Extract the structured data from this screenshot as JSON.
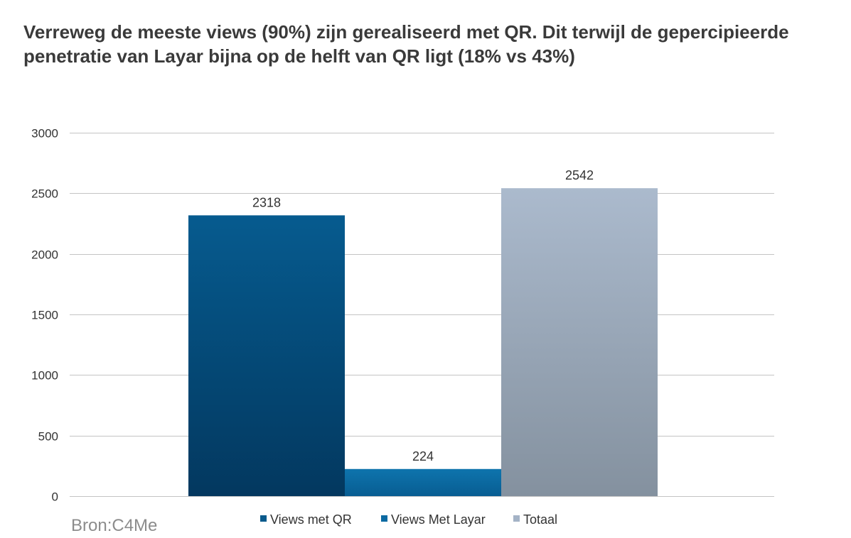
{
  "slide": {
    "title": "Verreweg de meeste views (90%) zijn gerealiseerd met QR. Dit terwijl de gepercipieerde penetratie van Layar bijna op de helft van QR ligt (18% vs 43%)",
    "source": "Bron:C4Me"
  },
  "chart_data": {
    "type": "bar",
    "title": "",
    "xlabel": "",
    "ylabel": "",
    "ylim": [
      0,
      3000
    ],
    "yticks": [
      0,
      500,
      1000,
      1500,
      2000,
      2500,
      3000
    ],
    "grid": true,
    "legend_position": "bottom",
    "series": [
      {
        "name": "Views met QR",
        "values": [
          2318
        ],
        "color": "#0a5a8c"
      },
      {
        "name": "Views Met Layar",
        "values": [
          224
        ],
        "color": "#0b6aa2"
      },
      {
        "name": "Totaal",
        "values": [
          2542
        ],
        "color": "#a4b3c6"
      }
    ],
    "data_labels": [
      "2318",
      "224",
      "2542"
    ]
  }
}
